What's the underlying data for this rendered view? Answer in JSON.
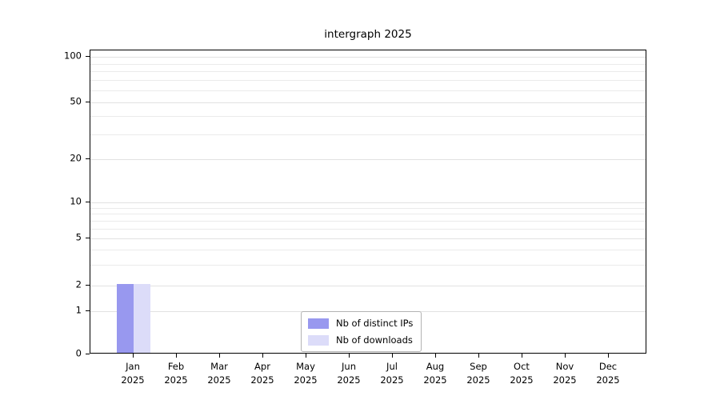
{
  "chart_data": {
    "type": "bar",
    "title": "intergraph 2025",
    "xlabel": "",
    "ylabel": "",
    "year": "2025",
    "months": [
      "Jan",
      "Feb",
      "Mar",
      "Apr",
      "May",
      "Jun",
      "Jul",
      "Aug",
      "Sep",
      "Oct",
      "Nov",
      "Dec"
    ],
    "categories": [
      "Jan 2025",
      "Feb 2025",
      "Mar 2025",
      "Apr 2025",
      "May 2025",
      "Jun 2025",
      "Jul 2025",
      "Aug 2025",
      "Sep 2025",
      "Oct 2025",
      "Nov 2025",
      "Dec 2025"
    ],
    "series": [
      {
        "name": "Nb of distinct IPs",
        "color": "#9898ef",
        "values": [
          2,
          0,
          0,
          0,
          0,
          0,
          0,
          0,
          0,
          0,
          0,
          0
        ]
      },
      {
        "name": "Nb of downloads",
        "color": "#dcdcf9",
        "values": [
          2,
          0,
          0,
          0,
          0,
          0,
          0,
          0,
          0,
          0,
          0,
          0
        ]
      }
    ],
    "y_ticks": [
      0,
      1,
      2,
      5,
      10,
      20,
      50,
      100
    ],
    "y_scale": "log (symlog, linear below 1)",
    "ylim": [
      0,
      110
    ],
    "grid": true,
    "legend_position": "lower center",
    "axis_color": "#000000",
    "grid_color": "#e8e8e8",
    "background_color": "#ffffff"
  }
}
